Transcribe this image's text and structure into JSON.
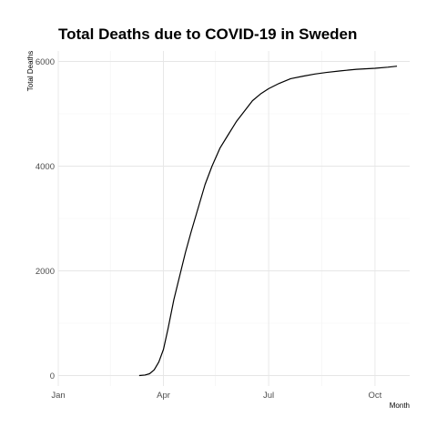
{
  "chart_data": {
    "type": "line",
    "title": "Total Deaths due to COVID-19 in Sweden",
    "xlabel": "Month",
    "ylabel": "Total Deaths",
    "x_ticks": [
      "Jan",
      "Apr",
      "Jul",
      "Oct"
    ],
    "y_ticks": [
      "0",
      "2000",
      "4000",
      "6000"
    ],
    "xlim": [
      "2020-01-01",
      "2020-10-31"
    ],
    "ylim": [
      -200,
      6200
    ],
    "grid": true,
    "legend": "none",
    "series_color": "#000000",
    "series": [
      {
        "x": [
          "2020-03-11",
          "2020-03-16",
          "2020-03-20",
          "2020-03-24",
          "2020-03-28",
          "2020-04-01",
          "2020-04-05",
          "2020-04-10",
          "2020-04-15",
          "2020-04-20",
          "2020-04-25",
          "2020-05-01",
          "2020-05-07",
          "2020-05-13",
          "2020-05-20",
          "2020-05-27",
          "2020-06-03",
          "2020-06-10",
          "2020-06-17",
          "2020-06-24",
          "2020-07-01",
          "2020-07-10",
          "2020-07-20",
          "2020-07-31",
          "2020-08-10",
          "2020-08-20",
          "2020-09-01",
          "2020-09-15",
          "2020-10-01",
          "2020-10-12",
          "2020-10-20"
        ],
        "y": [
          0,
          10,
          35,
          110,
          260,
          500,
          900,
          1450,
          1900,
          2350,
          2750,
          3200,
          3650,
          4000,
          4350,
          4600,
          4850,
          5050,
          5250,
          5380,
          5480,
          5580,
          5670,
          5720,
          5760,
          5790,
          5820,
          5850,
          5870,
          5890,
          5910
        ]
      }
    ]
  }
}
